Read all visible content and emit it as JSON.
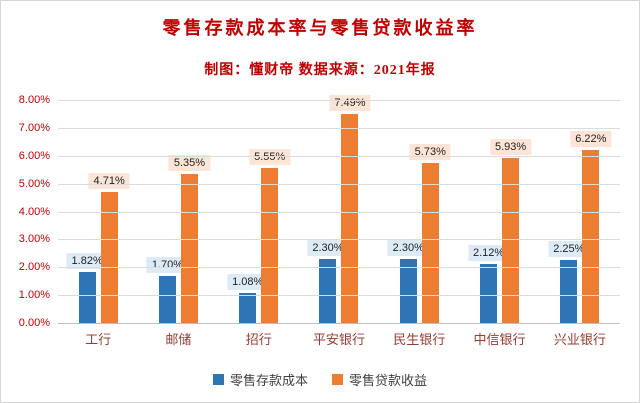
{
  "chart_data": {
    "type": "bar",
    "title": "零售存款成本率与零售贷款收益率",
    "subtitle": "制图：懂财帝  数据来源：2021年报",
    "categories": [
      "工行",
      "邮储",
      "招行",
      "平安银行",
      "民生银行",
      "中信银行",
      "兴业银行"
    ],
    "series": [
      {
        "name": "零售存款成本",
        "color": "#2E75B6",
        "label_bg": "#DDEBF7",
        "values": [
          1.82,
          1.7,
          1.08,
          2.3,
          2.3,
          2.12,
          2.25
        ]
      },
      {
        "name": "零售贷款收益",
        "color": "#ED7D31",
        "label_bg": "#FCE4D6",
        "values": [
          4.71,
          5.35,
          5.55,
          7.49,
          5.73,
          5.93,
          6.22
        ]
      }
    ],
    "y_ticks": [
      "8.00%",
      "7.00%",
      "6.00%",
      "5.00%",
      "4.00%",
      "3.00%",
      "2.00%",
      "1.00%",
      "0.00%"
    ],
    "ylim": [
      0,
      8
    ],
    "grid": true,
    "legend_position": "bottom",
    "data_label_format": "0.00%"
  },
  "colors": {
    "background": "#FFFFFF",
    "frame_border": "#D6D6D6",
    "title": "#C00000",
    "subtitle": "#C00000",
    "y_tick_text": "#C00000",
    "category_text": "#963C32",
    "data_label_text": "#1F1F1F",
    "legend_text": "#404040",
    "grid": "#DCDCDC",
    "axis_line": "#BFBFBF"
  }
}
